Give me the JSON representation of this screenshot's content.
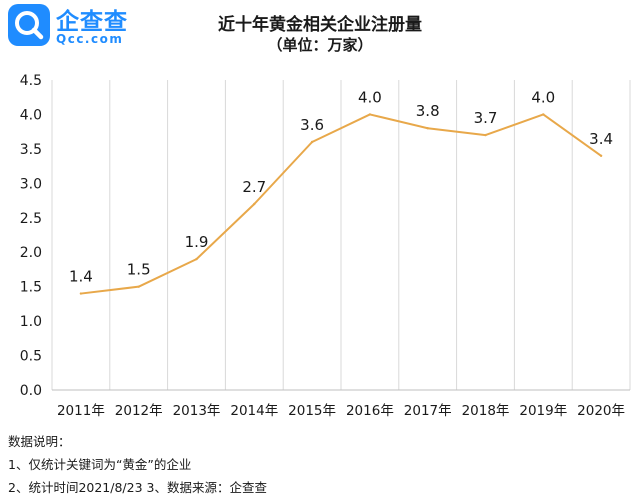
{
  "logo": {
    "name": "企查查",
    "domain": "Qcc.com"
  },
  "colors": {
    "line": "#e8a84a",
    "grid": "#d9d9d9",
    "axis": "#bfbfbf",
    "brand": "#1f8cff"
  },
  "chart_data": {
    "type": "line",
    "title": "近十年黄金相关企业注册量",
    "subtitle": "（单位：万家）",
    "categories": [
      "2011年",
      "2012年",
      "2013年",
      "2014年",
      "2015年",
      "2016年",
      "2017年",
      "2018年",
      "2019年",
      "2020年"
    ],
    "series": [
      {
        "values": [
          1.4,
          1.5,
          1.9,
          2.7,
          3.6,
          4.0,
          3.8,
          3.7,
          4.0,
          3.4
        ]
      }
    ],
    "y_ticks": [
      "0.0",
      "0.5",
      "1.0",
      "1.5",
      "2.0",
      "2.5",
      "3.0",
      "3.5",
      "4.0",
      "4.5"
    ],
    "ylim": [
      0,
      4.5
    ],
    "grid": "vertical",
    "xlabel": "",
    "ylabel": ""
  },
  "notes": {
    "heading": "数据说明：",
    "line1": "1、仅统计关键词为“黄金”的企业",
    "line2": "2、统计时间2021/8/23   3、数据来源：企查查"
  }
}
